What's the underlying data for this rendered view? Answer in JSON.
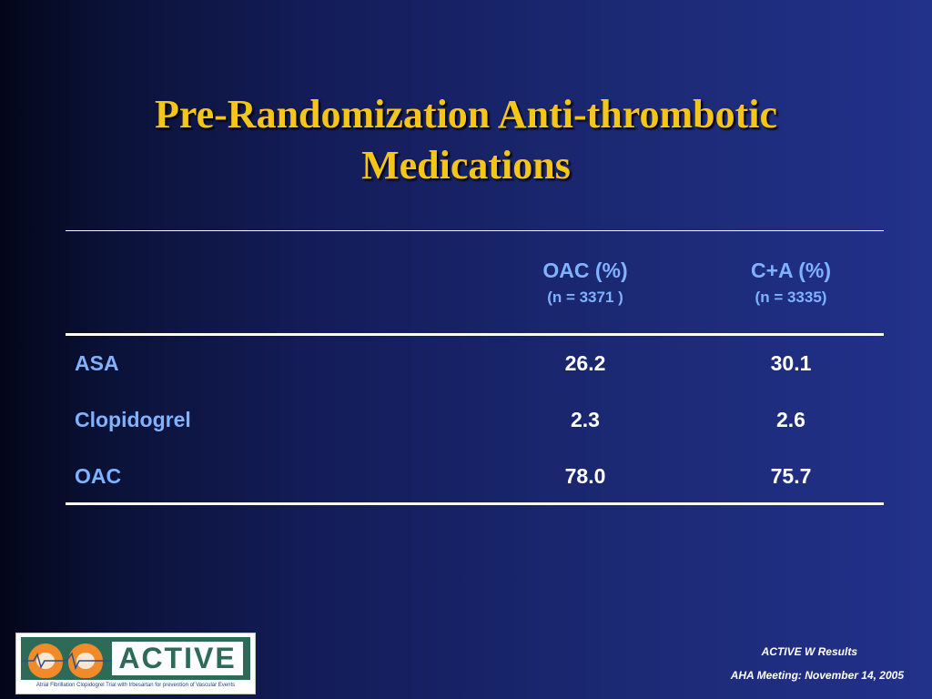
{
  "slide": {
    "title_line1": "Pre-Randomization Anti-thrombotic",
    "title_line2": "Medications",
    "colors": {
      "title": "#f5c518",
      "header_text": "#7fb2ff",
      "value_text": "#ffffff",
      "background": "#1c2a76"
    }
  },
  "table": {
    "columns": [
      {
        "label": "OAC (%)",
        "sublabel": "(n = 3371 )"
      },
      {
        "label": "C+A (%)",
        "sublabel": "(n = 3335)"
      }
    ],
    "rows": [
      {
        "label": "ASA",
        "values": [
          "26.2",
          "30.1"
        ]
      },
      {
        "label": "Clopidogrel",
        "values": [
          "2.3",
          "2.6"
        ]
      },
      {
        "label": "OAC",
        "values": [
          "78.0",
          "75.7"
        ]
      }
    ]
  },
  "logo": {
    "word": "ACTIVE",
    "tagline": "Atrial Fibrillation Clopidogrel Trial with Irbesartan for prevention of Vascular Events",
    "icons": [
      "heart-icon",
      "heart-icon"
    ]
  },
  "footer": {
    "line1": "ACTIVE W Results",
    "line2": "AHA Meeting: November 14, 2005"
  }
}
